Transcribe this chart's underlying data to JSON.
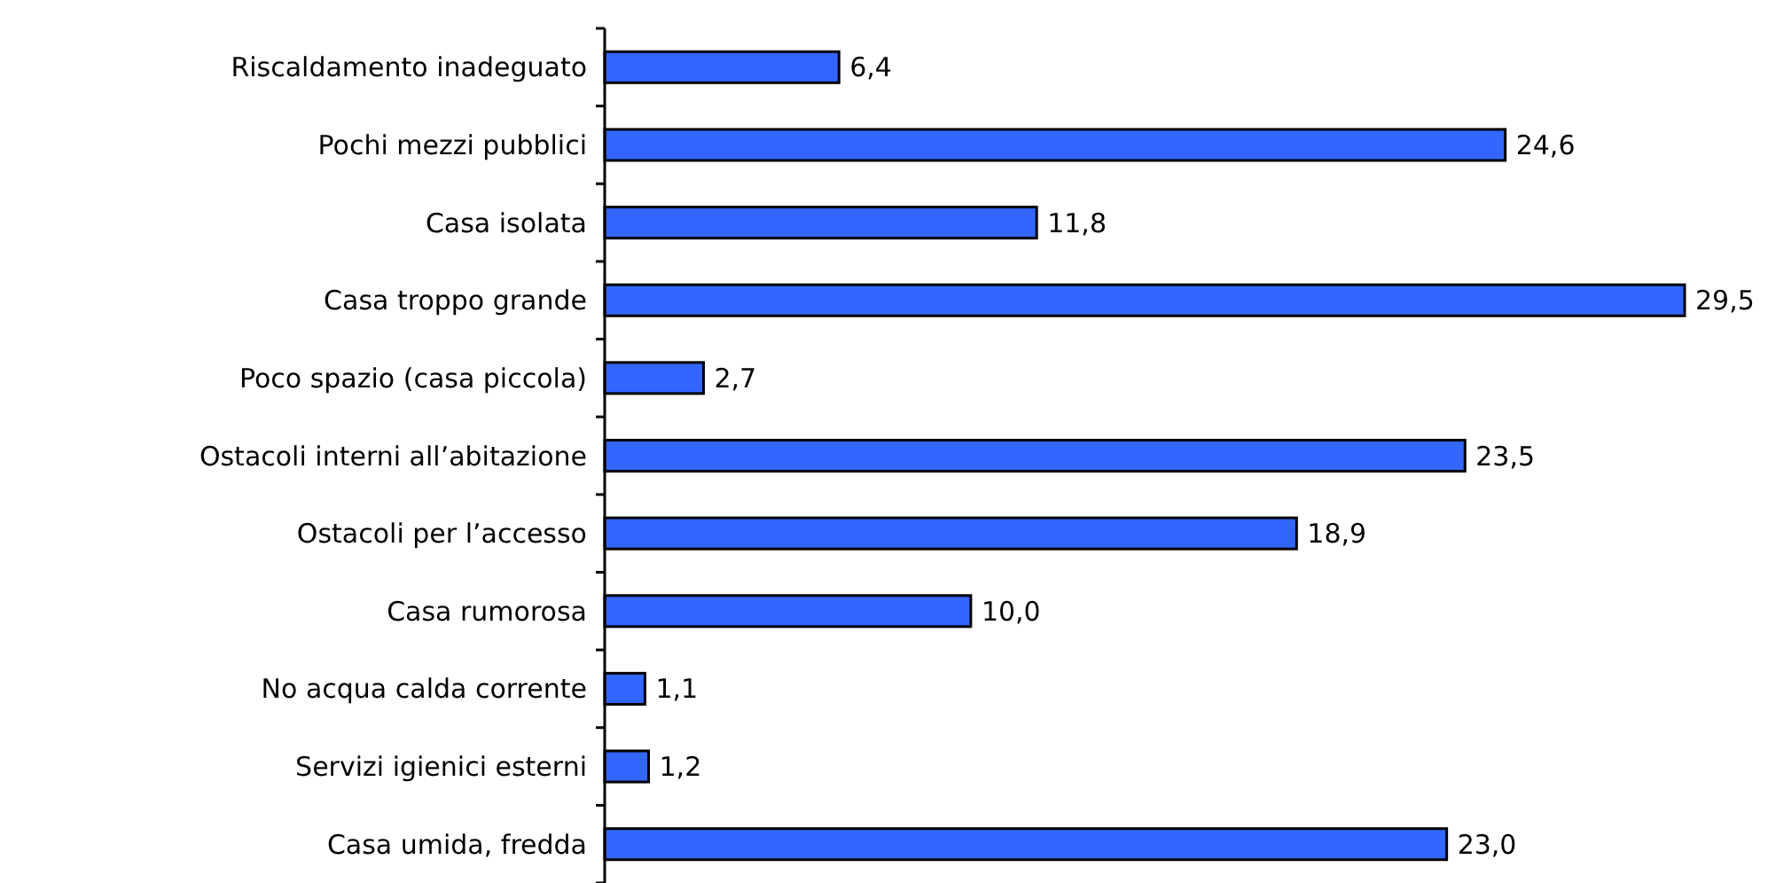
{
  "chart_data": {
    "type": "bar",
    "orientation": "horizontal",
    "color": "#3366ff",
    "categories": [
      "Riscaldamento inadeguato",
      "Pochi mezzi pubblici",
      "Casa isolata",
      "Casa troppo grande",
      "Poco spazio (casa piccola)",
      "Ostacoli interni all’abitazione",
      "Ostacoli per l’accesso",
      "Casa rumorosa",
      "No acqua calda corrente",
      "Servizi igienici esterni",
      "Casa umida, fredda"
    ],
    "values": [
      6.4,
      24.6,
      11.8,
      29.5,
      2.7,
      23.5,
      18.9,
      10.0,
      1.1,
      1.2,
      23.0
    ],
    "value_labels": [
      "6,4",
      "24,6",
      "11,8",
      "29,5",
      "2,7",
      "23,5",
      "18,9",
      "10,0",
      "1,1",
      "1,2",
      "23,0"
    ]
  }
}
